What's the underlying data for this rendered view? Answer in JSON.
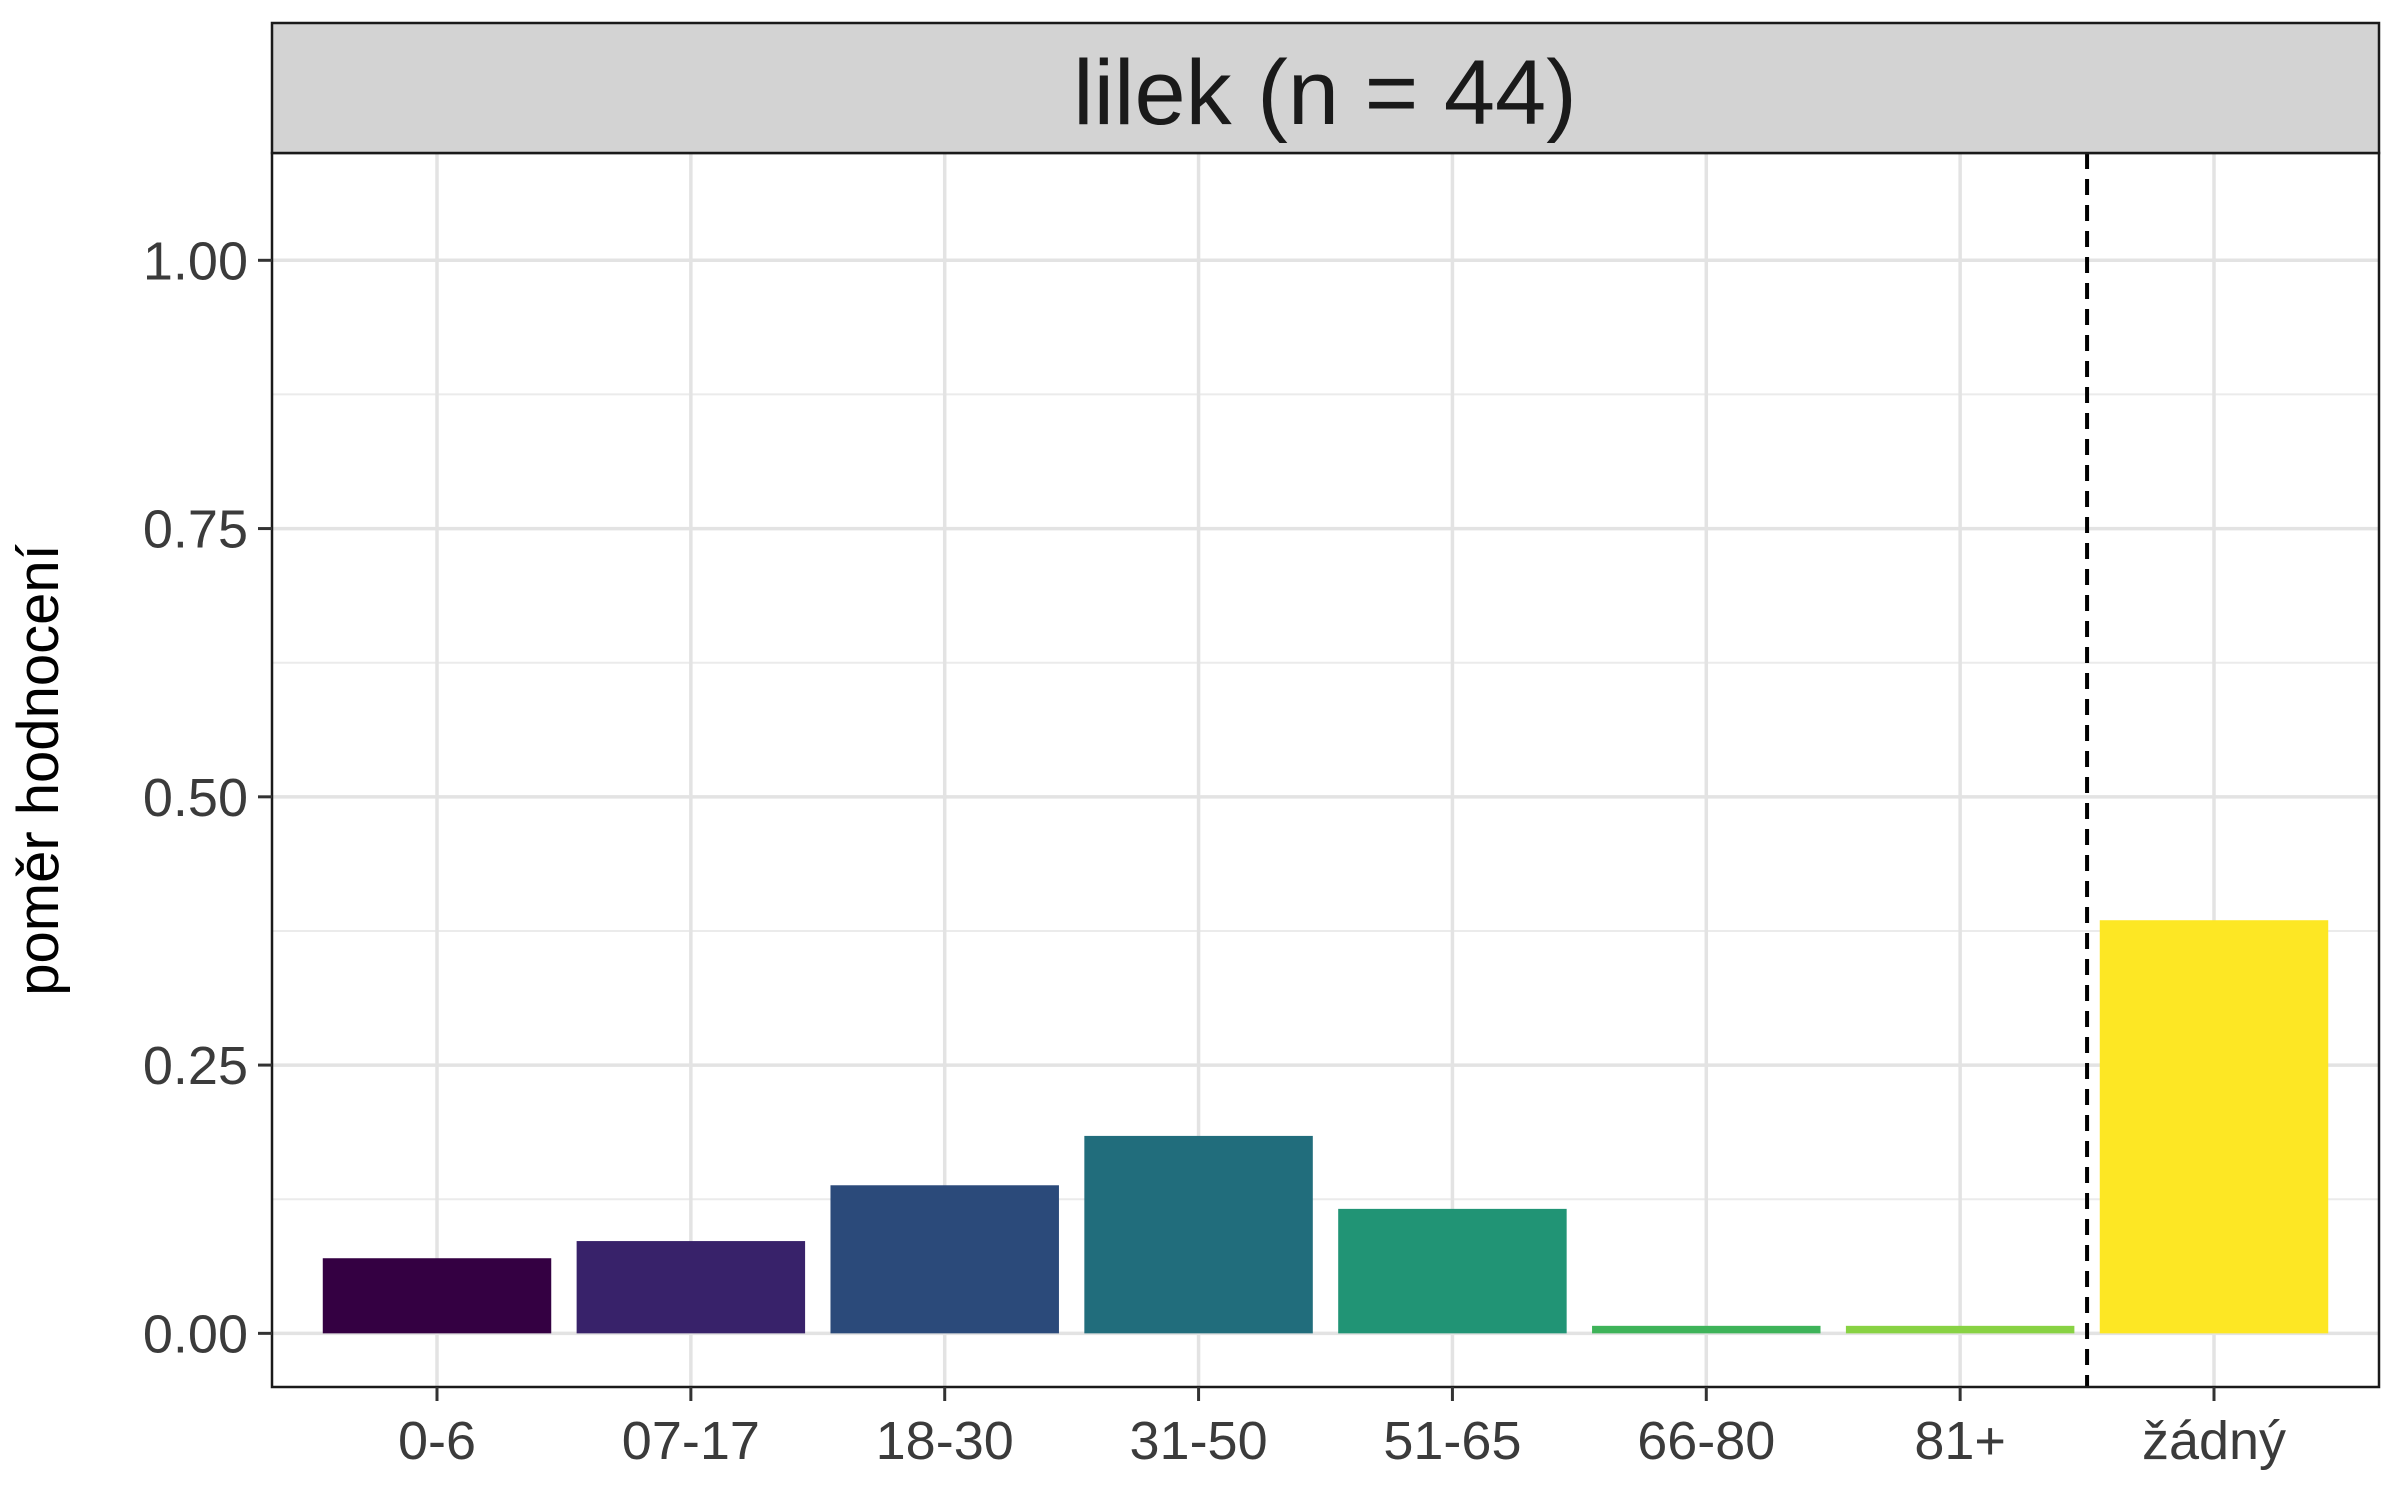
{
  "chart_data": {
    "type": "bar",
    "title": "lilek (n = 44)",
    "xlabel": "",
    "ylabel": "poměr hodnocení",
    "categories": [
      "0-6",
      "07-17",
      "18-30",
      "31-50",
      "51-65",
      "66-80",
      "81+",
      "žádný"
    ],
    "values": [
      0.07,
      0.086,
      0.138,
      0.184,
      0.116,
      0.007,
      0.007,
      0.385
    ],
    "colors": [
      "#340042",
      "#38226a",
      "#2b4a7a",
      "#216d7c",
      "#219475",
      "#3eb359",
      "#88d243",
      "#fde724"
    ],
    "ylim": [
      -0.05,
      1.1
    ],
    "yticks": [
      0,
      0.25,
      0.5,
      0.75,
      1.0
    ],
    "ytick_labels": [
      "0.00",
      "0.25",
      "0.50",
      "0.75",
      "1.00"
    ],
    "grid": true,
    "separator": {
      "between": [
        "81+",
        "žádný"
      ],
      "style": "dashed",
      "color": "#000000"
    }
  }
}
